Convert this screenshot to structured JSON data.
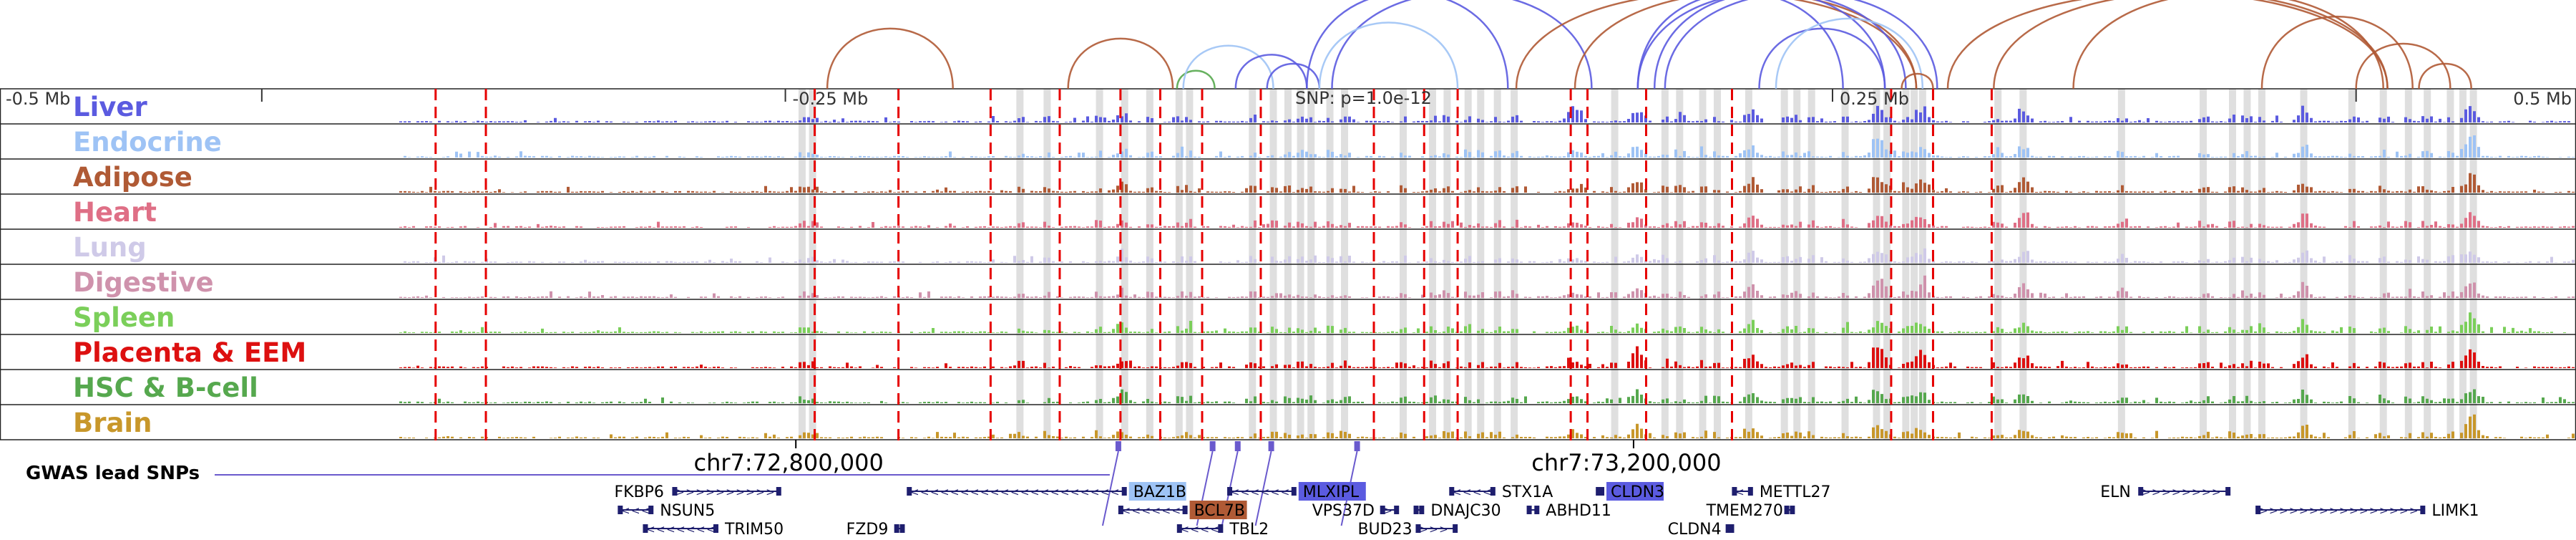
{
  "region": {
    "start": 72420000,
    "end": 73650000,
    "center": 73045000,
    "offset_ticks": [
      {
        "pos": 72545000,
        "label": "-0.5 Mb"
      },
      {
        "pos": 72795000,
        "label": "-0.25 Mb"
      },
      {
        "pos": 73295000,
        "label": "0.25 Mb"
      },
      {
        "pos": 73545000,
        "label": "0.5 Mb"
      }
    ],
    "coord_ticks": [
      {
        "pos": 72800000,
        "label": "chr7:72,800,000"
      },
      {
        "pos": 73200000,
        "label": "chr7:73,200,000"
      }
    ],
    "snp_note": "SNP: p=1.0e-12"
  },
  "tracks": [
    {
      "name": "Liver",
      "color": "#5b5be0"
    },
    {
      "name": "Endocrine",
      "color": "#9ec3f5"
    },
    {
      "name": "Adipose",
      "color": "#b05a35"
    },
    {
      "name": "Heart",
      "color": "#df6f86"
    },
    {
      "name": "Lung",
      "color": "#cfcae8"
    },
    {
      "name": "Digestive",
      "color": "#cf92ac"
    },
    {
      "name": "Spleen",
      "color": "#7bcf5a"
    },
    {
      "name": "Placenta & EEM",
      "color": "#dd1010"
    },
    {
      "name": "HSC & B-cell",
      "color": "#56a84e"
    },
    {
      "name": "Brain",
      "color": "#c8972a"
    }
  ],
  "gwas": {
    "label": "GWAS lead SNPs",
    "color": "#6a5acd",
    "snps": [
      72954000,
      72999000,
      73011000,
      73027000,
      73068000
    ]
  },
  "red_lines": [
    72628000,
    72652000,
    72809000,
    72849000,
    72893000,
    72926000,
    72955000,
    72974000,
    72994000,
    73022000,
    73076000,
    73100000,
    73116000,
    73170000,
    73178000,
    73206000,
    73247000,
    73323000,
    73343000,
    73371000
  ],
  "grey_bands": [
    72803000,
    72808000,
    72907000,
    72920000,
    72945000,
    72957000,
    72969000,
    72983000,
    72988000,
    73018000,
    73028000,
    73035000,
    73041000,
    73046000,
    73055000,
    73062000,
    73090000,
    73104000,
    73111000,
    73121000,
    73127000,
    73135000,
    73143000,
    73191000,
    73215000,
    73222000,
    73233000,
    73240000,
    73255000,
    73272000,
    73278000,
    73285000,
    73301000,
    73316000,
    73321000,
    73330000,
    73334000,
    73338000,
    73374000,
    73386000,
    73433000,
    73472000,
    73486000,
    73493000,
    73500000,
    73520000,
    73543000,
    73558000,
    73570000,
    73579000,
    73590000,
    73596000,
    73601000
  ],
  "peaks": [
    {
      "pos": 73172000,
      "heights": [
        0.75,
        0.3,
        0.2,
        0.25,
        0.2,
        0.25,
        0.3,
        0.3,
        0.25,
        0.3
      ]
    },
    {
      "pos": 73202000,
      "heights": [
        0.5,
        0.4,
        0.5,
        0.45,
        0.3,
        0.5,
        0.3,
        0.9,
        0.5,
        0.5
      ]
    },
    {
      "pos": 73257000,
      "heights": [
        0.4,
        0.3,
        0.4,
        0.4,
        0.3,
        0.4,
        0.3,
        0.4,
        0.3,
        0.3
      ]
    },
    {
      "pos": 73317000,
      "heights": [
        0.5,
        0.7,
        0.5,
        0.5,
        0.4,
        0.8,
        0.35,
        0.8,
        0.4,
        0.35
      ]
    },
    {
      "pos": 73338000,
      "heights": [
        0.45,
        0.35,
        0.5,
        0.3,
        0.3,
        0.4,
        0.3,
        0.6,
        0.35,
        0.3
      ]
    },
    {
      "pos": 73386000,
      "heights": [
        0.35,
        0.3,
        0.5,
        0.4,
        0.3,
        0.5,
        0.3,
        0.5,
        0.3,
        0.3
      ]
    },
    {
      "pos": 73520000,
      "heights": [
        0.45,
        0.35,
        0.4,
        0.45,
        0.35,
        0.4,
        0.3,
        0.5,
        0.3,
        0.3
      ]
    },
    {
      "pos": 73600000,
      "heights": [
        0.5,
        0.9,
        0.55,
        0.5,
        0.4,
        0.45,
        0.7,
        0.55,
        0.45,
        0.75
      ]
    },
    {
      "pos": 72955000,
      "heights": [
        0.3,
        0.2,
        0.25,
        0.15,
        0.2,
        0.15,
        0.25,
        0.2,
        0.35,
        0.25
      ]
    }
  ],
  "loops": [
    {
      "from": 72815000,
      "to": 72875000,
      "color": "#b05a35"
    },
    {
      "from": 72930000,
      "to": 72980000,
      "color": "#b05a35"
    },
    {
      "from": 72982000,
      "to": 73000000,
      "color": "#56a84e"
    },
    {
      "from": 72985000,
      "to": 73028000,
      "color": "#9ec3f5"
    },
    {
      "from": 73010000,
      "to": 73044000,
      "color": "#5b5be0"
    },
    {
      "from": 73025000,
      "to": 73050000,
      "color": "#5b5be0"
    },
    {
      "from": 73044000,
      "to": 73140000,
      "color": "#5b5be0"
    },
    {
      "from": 73056000,
      "to": 73180000,
      "color": "#5b5be0"
    },
    {
      "from": 73050000,
      "to": 73116000,
      "color": "#9ec3f5"
    },
    {
      "from": 73144000,
      "to": 73335000,
      "color": "#b05a35"
    },
    {
      "from": 73172000,
      "to": 73335000,
      "color": "#b05a35"
    },
    {
      "from": 73202000,
      "to": 73300000,
      "color": "#5b5be0"
    },
    {
      "from": 73202000,
      "to": 73330000,
      "color": "#5b5be0"
    },
    {
      "from": 73210000,
      "to": 73320000,
      "color": "#5b5be0"
    },
    {
      "from": 73215000,
      "to": 73345000,
      "color": "#5b5be0"
    },
    {
      "from": 73260000,
      "to": 73320000,
      "color": "#5b5be0"
    },
    {
      "from": 73268000,
      "to": 73338000,
      "color": "#9ec3f5"
    },
    {
      "from": 73328000,
      "to": 73343000,
      "color": "#b05a35"
    },
    {
      "from": 73350000,
      "to": 73560000,
      "color": "#b05a35"
    },
    {
      "from": 73372000,
      "to": 73560000,
      "color": "#b05a35"
    },
    {
      "from": 73410000,
      "to": 73558000,
      "color": "#b05a35"
    },
    {
      "from": 73500000,
      "to": 73572000,
      "color": "#b05a35"
    },
    {
      "from": 73545000,
      "to": 73590000,
      "color": "#b05a35"
    },
    {
      "from": 73575000,
      "to": 73600000,
      "color": "#b05a35"
    }
  ],
  "genes": [
    {
      "name": "FKBP6",
      "start": 72742000,
      "end": 72792000,
      "row": 0,
      "strand": "+",
      "label_side": "left"
    },
    {
      "name": "NSUN5",
      "start": 72716000,
      "end": 72731000,
      "row": 1,
      "strand": "-",
      "label_side": "right"
    },
    {
      "name": "TRIM50",
      "start": 72728000,
      "end": 72762000,
      "row": 2,
      "strand": "-",
      "label_side": "right"
    },
    {
      "name": "FZD9",
      "start": 72848000,
      "end": 72851000,
      "row": 2,
      "strand": "+",
      "label_side": "left"
    },
    {
      "name": "BAZ1B",
      "start": 72854000,
      "end": 72957000,
      "row": 0,
      "strand": "-",
      "label_side": "right",
      "highlight": "#9ec3f5"
    },
    {
      "name": "BCL7B",
      "start": 72955000,
      "end": 72986000,
      "row": 1,
      "strand": "-",
      "label_side": "right",
      "highlight": "#b05a35"
    },
    {
      "name": "TBL2",
      "start": 72983000,
      "end": 73003000,
      "row": 2,
      "strand": "-",
      "label_side": "right"
    },
    {
      "name": "MLXIPL",
      "start": 73007000,
      "end": 73038000,
      "row": 0,
      "strand": "-",
      "label_side": "right",
      "highlight": "#5b5be0"
    },
    {
      "name": "VPS37D",
      "start": 73080000,
      "end": 73087000,
      "row": 1,
      "strand": "+",
      "label_side": "left"
    },
    {
      "name": "DNAJC30",
      "start": 73096000,
      "end": 73099000,
      "row": 1,
      "strand": "-",
      "label_side": "right"
    },
    {
      "name": "BUD23",
      "start": 73097000,
      "end": 73115000,
      "row": 2,
      "strand": "+",
      "label_side": "left"
    },
    {
      "name": "STX1A",
      "start": 73113000,
      "end": 73133000,
      "row": 0,
      "strand": "-",
      "label_side": "right"
    },
    {
      "name": "ABHD11",
      "start": 73150000,
      "end": 73154000,
      "row": 1,
      "strand": "-",
      "label_side": "right"
    },
    {
      "name": "CLDN3",
      "start": 73183000,
      "end": 73185000,
      "row": 0,
      "strand": "-",
      "label_side": "right",
      "highlight": "#5b5be0"
    },
    {
      "name": "CLDN4",
      "start": 73245000,
      "end": 73247000,
      "row": 2,
      "strand": "+",
      "label_side": "left"
    },
    {
      "name": "METTL27",
      "start": 73248000,
      "end": 73256000,
      "row": 0,
      "strand": "-",
      "label_side": "right"
    },
    {
      "name": "TMEM270",
      "start": 73273000,
      "end": 73276000,
      "row": 1,
      "strand": "+",
      "label_side": "left"
    },
    {
      "name": "ELN",
      "start": 73442000,
      "end": 73484000,
      "row": 0,
      "strand": "+",
      "label_side": "left"
    },
    {
      "name": "LIMK1",
      "start": 73498000,
      "end": 73577000,
      "row": 1,
      "strand": "+",
      "label_side": "right"
    }
  ]
}
